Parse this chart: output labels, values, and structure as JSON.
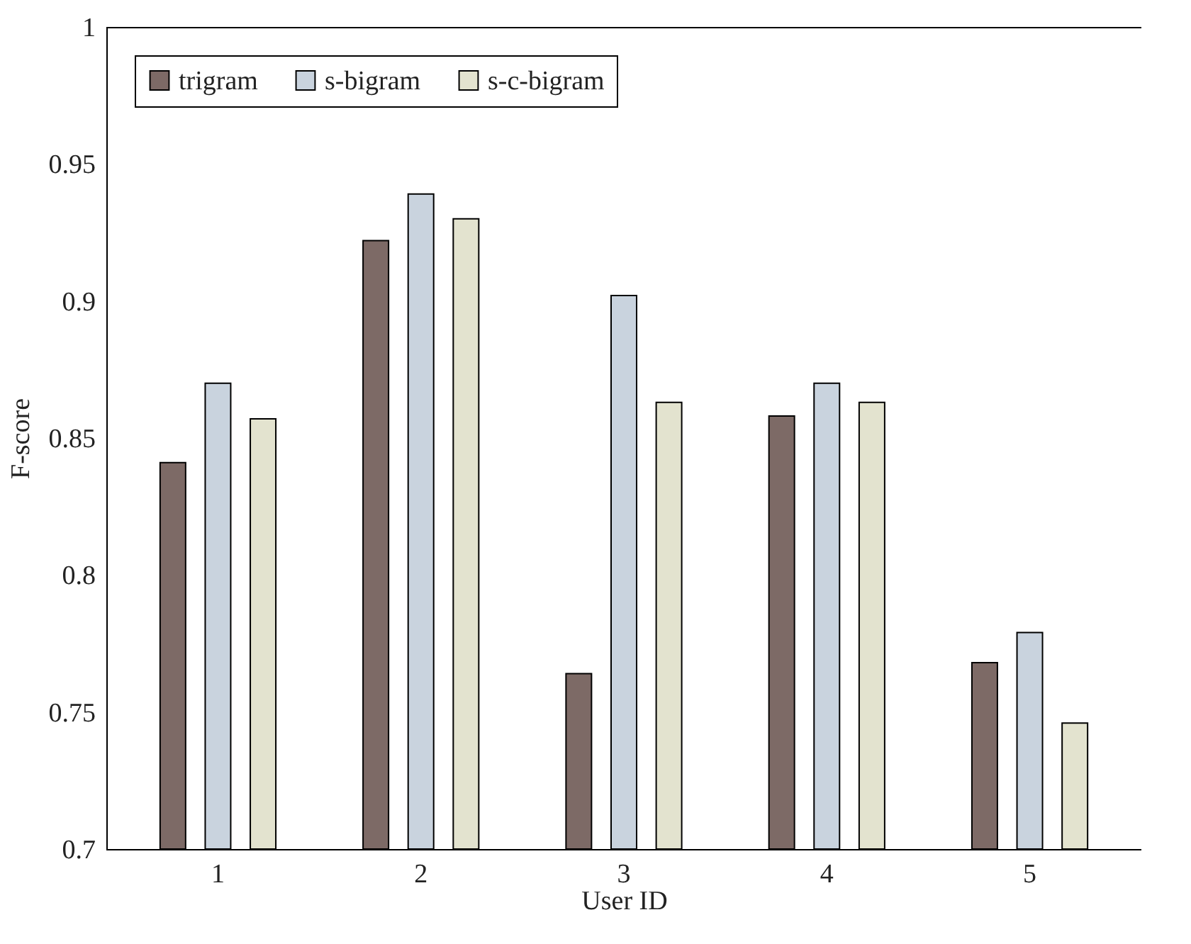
{
  "chart_data": {
    "type": "bar",
    "xlabel": "User ID",
    "ylabel": "F-score",
    "categories": [
      "1",
      "2",
      "3",
      "4",
      "5"
    ],
    "series": [
      {
        "name": "trigram",
        "color": "#7d6a66",
        "values": [
          0.841,
          0.922,
          0.764,
          0.858,
          0.768
        ]
      },
      {
        "name": "s-bigram",
        "color": "#c9d3de",
        "values": [
          0.87,
          0.939,
          0.902,
          0.87,
          0.779
        ]
      },
      {
        "name": "s-c-bigram",
        "color": "#e3e3cf",
        "values": [
          0.857,
          0.93,
          0.863,
          0.863,
          0.746
        ]
      }
    ],
    "ylim": [
      0.7,
      1
    ],
    "yticks": [
      0.7,
      0.75,
      0.8,
      0.85,
      0.9,
      0.95,
      1
    ],
    "grid": false,
    "legend": "top left"
  }
}
